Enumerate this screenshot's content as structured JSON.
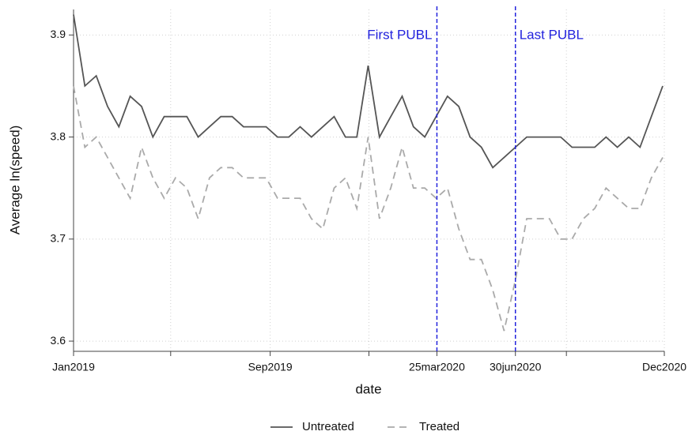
{
  "chart_data": {
    "type": "line",
    "x_label": "date",
    "y_label": "Average ln(speed)",
    "x": [
      "2019-01-01",
      "2019-01-15",
      "2019-01-29",
      "2019-02-12",
      "2019-02-26",
      "2019-03-12",
      "2019-03-26",
      "2019-04-09",
      "2019-04-23",
      "2019-05-07",
      "2019-05-21",
      "2019-06-04",
      "2019-06-18",
      "2019-07-02",
      "2019-07-16",
      "2019-07-30",
      "2019-08-13",
      "2019-08-27",
      "2019-09-10",
      "2019-09-24",
      "2019-10-08",
      "2019-10-22",
      "2019-11-05",
      "2019-11-19",
      "2019-12-03",
      "2019-12-17",
      "2019-12-31",
      "2020-01-14",
      "2020-01-28",
      "2020-02-11",
      "2020-02-25",
      "2020-03-10",
      "2020-03-24",
      "2020-04-07",
      "2020-04-21",
      "2020-05-05",
      "2020-05-19",
      "2020-06-02",
      "2020-06-16",
      "2020-06-30",
      "2020-07-14",
      "2020-07-28",
      "2020-08-11",
      "2020-08-25",
      "2020-09-08",
      "2020-09-22",
      "2020-10-06",
      "2020-10-20",
      "2020-11-03",
      "2020-11-17",
      "2020-12-01",
      "2020-12-15",
      "2020-12-29"
    ],
    "series": [
      {
        "name": "Untreated",
        "color": "#555555",
        "dash": "none",
        "values": [
          3.92,
          3.85,
          3.86,
          3.83,
          3.81,
          3.84,
          3.83,
          3.8,
          3.82,
          3.82,
          3.82,
          3.8,
          3.81,
          3.82,
          3.82,
          3.81,
          3.81,
          3.81,
          3.8,
          3.8,
          3.81,
          3.8,
          3.81,
          3.82,
          3.8,
          3.8,
          3.87,
          3.8,
          3.82,
          3.84,
          3.81,
          3.8,
          3.82,
          3.84,
          3.83,
          3.8,
          3.79,
          3.77,
          3.78,
          3.79,
          3.8,
          3.8,
          3.8,
          3.8,
          3.79,
          3.79,
          3.79,
          3.8,
          3.79,
          3.8,
          3.79,
          3.82,
          3.85
        ]
      },
      {
        "name": "Treated",
        "color": "#aaaaaa",
        "dash": "9 6",
        "values": [
          3.85,
          3.79,
          3.8,
          3.78,
          3.76,
          3.74,
          3.79,
          3.76,
          3.74,
          3.76,
          3.75,
          3.72,
          3.76,
          3.77,
          3.77,
          3.76,
          3.76,
          3.76,
          3.74,
          3.74,
          3.74,
          3.72,
          3.71,
          3.75,
          3.76,
          3.73,
          3.8,
          3.72,
          3.75,
          3.79,
          3.75,
          3.75,
          3.74,
          3.75,
          3.71,
          3.68,
          3.68,
          3.65,
          3.61,
          3.66,
          3.72,
          3.72,
          3.72,
          3.7,
          3.7,
          3.72,
          3.73,
          3.75,
          3.74,
          3.73,
          3.73,
          3.76,
          3.78
        ]
      }
    ],
    "xlim": [
      "2019-01-01",
      "2020-12-31"
    ],
    "xticks": [
      {
        "value": "2019-01-01",
        "label": "Jan2019"
      },
      {
        "value": "2019-09-01",
        "label": "Sep2019"
      },
      {
        "value": "2020-03-25",
        "label": "25mar2020"
      },
      {
        "value": "2020-06-30",
        "label": "30jun2020"
      },
      {
        "value": "2020-12-31",
        "label": "Dec2020"
      }
    ],
    "xminorticks": [
      "2019-05-01",
      "2020-01-01",
      "2020-09-01"
    ],
    "ylim": [
      3.59,
      3.925
    ],
    "yticks": [
      3.6,
      3.7,
      3.8,
      3.9
    ],
    "grid": true,
    "vlines": [
      {
        "x": "2020-03-25",
        "label": "First PUBL",
        "color": "#2222dd",
        "side": "left"
      },
      {
        "x": "2020-06-30",
        "label": "Last PUBL",
        "color": "#2222dd",
        "side": "right"
      }
    ],
    "legend": "bottom"
  }
}
